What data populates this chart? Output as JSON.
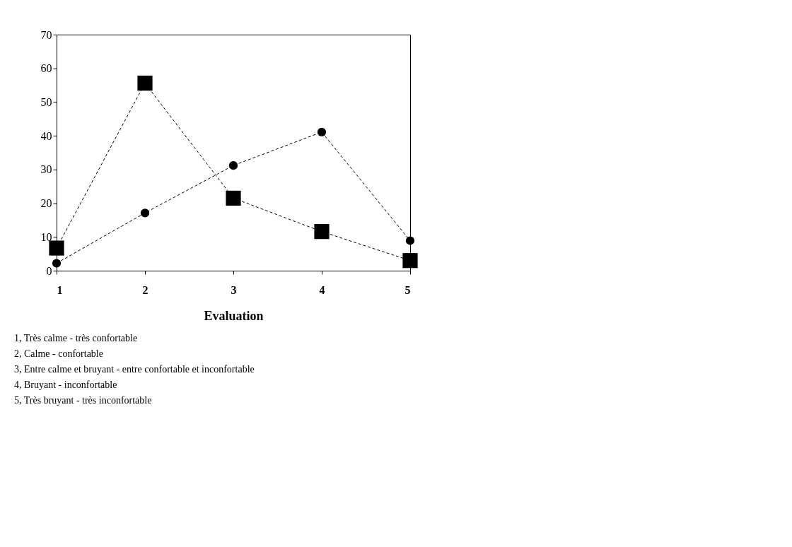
{
  "chart_data": {
    "type": "line",
    "xlabel": "Evaluation",
    "x": [
      1,
      2,
      3,
      4,
      5
    ],
    "series": [
      {
        "color": "#000000",
        "marker": "square",
        "values": [
          6.7,
          55.6,
          21.5,
          11.6,
          3.0
        ]
      },
      {
        "color": "#000000",
        "marker": "circle",
        "values": [
          2.2,
          17.1,
          31.2,
          41.1,
          8.9
        ]
      }
    ],
    "xlim": [
      1,
      5
    ],
    "xticks": [
      1,
      2,
      3,
      4,
      5
    ],
    "ylim": [
      0,
      70
    ],
    "yticks": [
      0,
      10,
      20,
      30,
      40,
      50,
      60,
      70
    ],
    "grid": false,
    "line_style": "dashed",
    "annotations": [
      "1, Très calme - très confortable",
      "2, Calme  - confortable",
      "3, Entre calme et bruyant - entre confortable et inconfortable",
      "4, Bruyant - inconfortable",
      "5, Très bruyant - très inconfortable"
    ]
  }
}
